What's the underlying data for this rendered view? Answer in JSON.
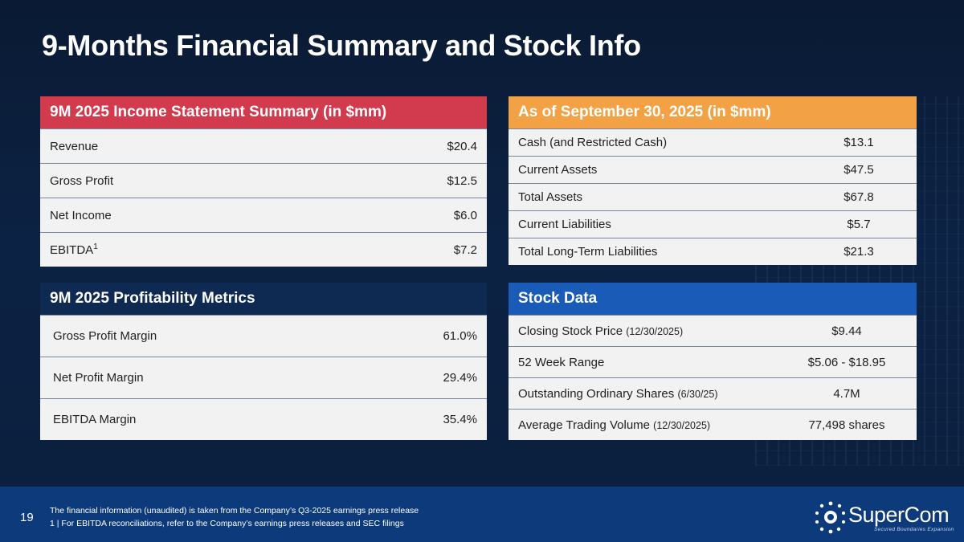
{
  "title": "9-Months Financial Summary and Stock Info",
  "income": {
    "header": "9M 2025 Income Statement Summary (in $mm)",
    "rows": [
      {
        "label": "Revenue",
        "value": "$20.4"
      },
      {
        "label": "Gross Profit",
        "value": "$12.5"
      },
      {
        "label": "Net Income",
        "value": "$6.0"
      },
      {
        "label": "EBITDA",
        "sup": "1",
        "value": "$7.2"
      }
    ]
  },
  "balance": {
    "header": "As of September 30, 2025 (in $mm)",
    "rows": [
      {
        "label": "Cash (and Restricted Cash)",
        "value": "$13.1"
      },
      {
        "label": "Current Assets",
        "value": "$47.5"
      },
      {
        "label": "Total Assets",
        "value": "$67.8"
      },
      {
        "label": "Current Liabilities",
        "value": "$5.7"
      },
      {
        "label": "Total Long-Term Liabilities",
        "value": "$21.3"
      }
    ]
  },
  "profitability": {
    "header": "9M 2025 Profitability Metrics",
    "rows": [
      {
        "label": "Gross Profit Margin",
        "value": "61.0%"
      },
      {
        "label": "Net Profit Margin",
        "value": "29.4%"
      },
      {
        "label": "EBITDA Margin",
        "value": "35.4%"
      }
    ]
  },
  "stock": {
    "header": "Stock Data",
    "rows": [
      {
        "label": "Closing Stock Price",
        "note": "(12/30/2025)",
        "value": "$9.44"
      },
      {
        "label": "52 Week Range",
        "note": "",
        "value": "$5.06 - $18.95"
      },
      {
        "label": "Outstanding Ordinary Shares",
        "note": "(6/30/25)",
        "value": "4.7M"
      },
      {
        "label": "Average Trading Volume",
        "note": "(12/30/2025)",
        "value": "77,498 shares"
      }
    ]
  },
  "footer": {
    "page_number": "19",
    "note_1": "The financial information (unaudited) is taken from the Company’s Q3-2025 earnings press release",
    "note_2": "1 |  For EBITDA reconciliations, refer to the Company’s earnings press releases and SEC filings",
    "logo_text": "SuperCom",
    "logo_tagline": "Secured Boundaries Expansion"
  }
}
